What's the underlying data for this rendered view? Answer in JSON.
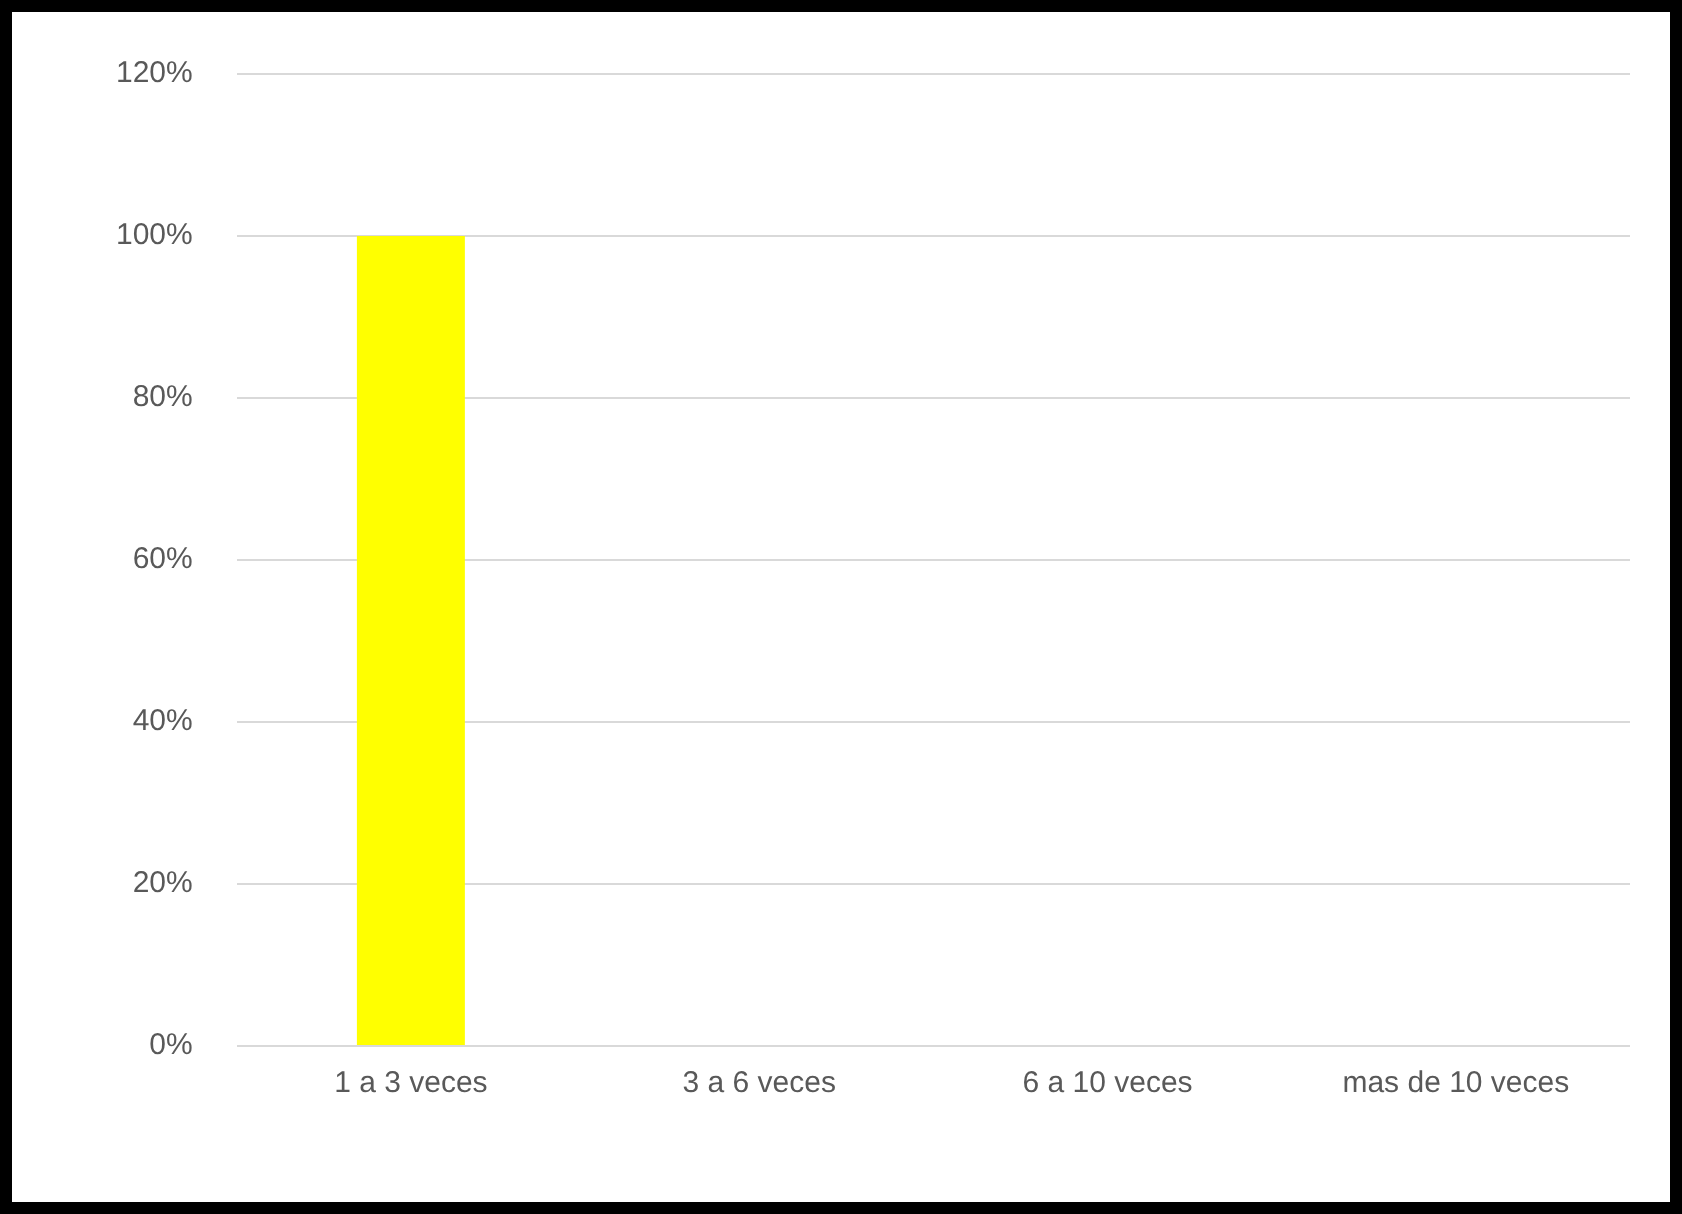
{
  "chart_data": {
    "type": "bar",
    "categories": [
      "1 a 3 veces",
      "3 a 6 veces",
      "6 a 10 veces",
      "mas de 10 veces"
    ],
    "values": [
      100,
      0,
      0,
      0
    ],
    "color": "#ffff00",
    "ylim": [
      0,
      120
    ],
    "yticks": [
      {
        "value": 0,
        "label": "0%"
      },
      {
        "value": 20,
        "label": "20%"
      },
      {
        "value": 40,
        "label": "40%"
      },
      {
        "value": 60,
        "label": "60%"
      },
      {
        "value": 80,
        "label": "80%"
      },
      {
        "value": 100,
        "label": "100%"
      },
      {
        "value": 120,
        "label": "120%"
      }
    ],
    "grid": "y",
    "legend": false
  }
}
